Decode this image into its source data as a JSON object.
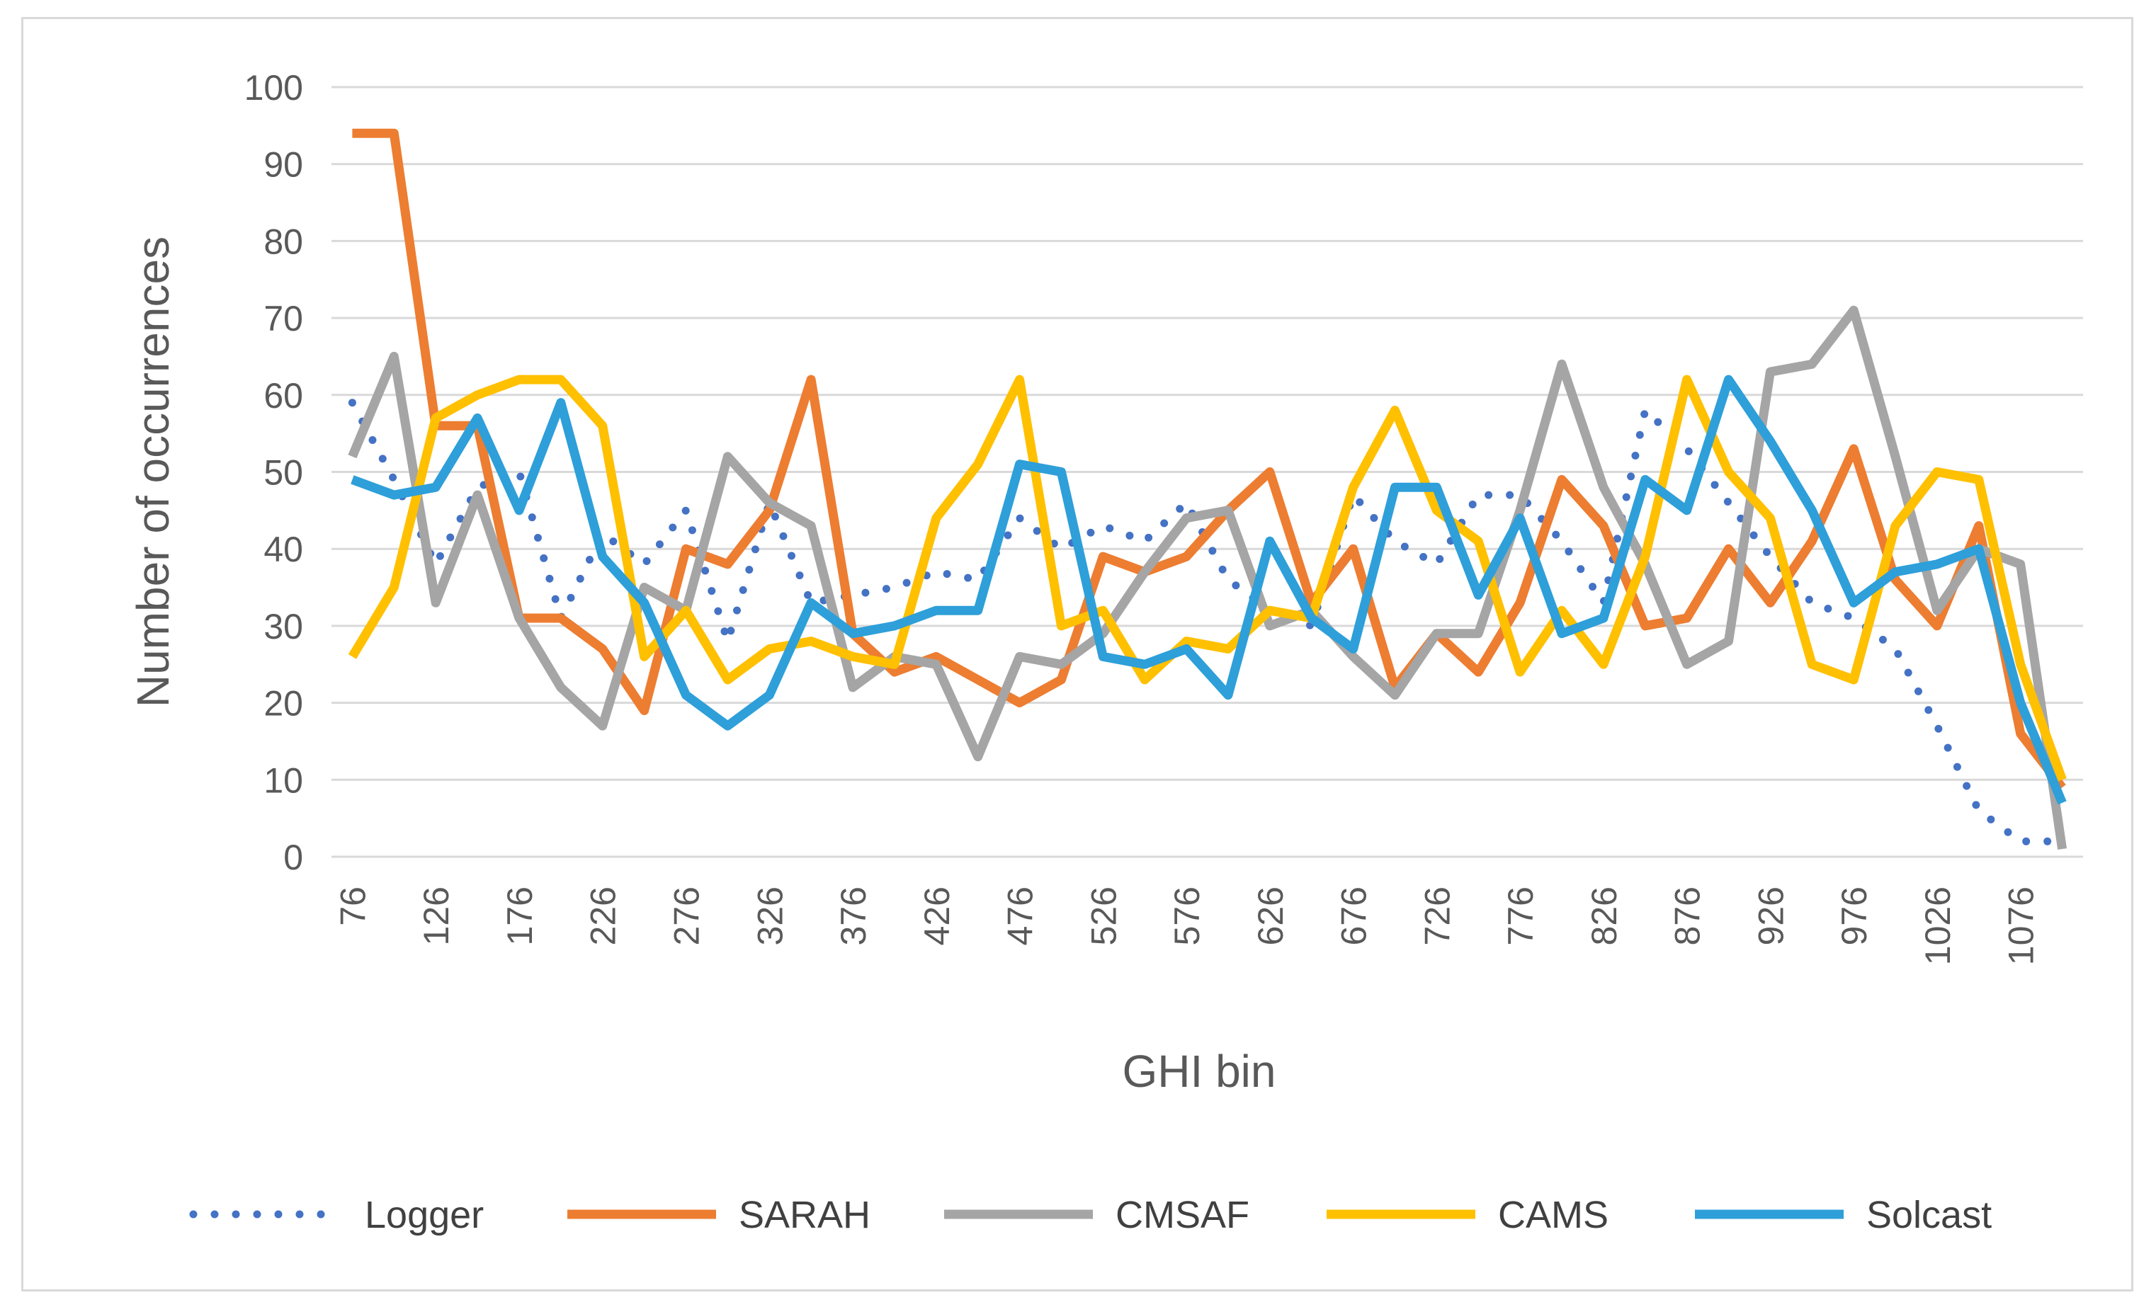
{
  "chart_data": {
    "type": "line",
    "title": "",
    "xlabel": "GHI bin",
    "ylabel": "Number of occurrences",
    "ylim": [
      0,
      100
    ],
    "yticks": [
      0,
      10,
      20,
      30,
      40,
      50,
      60,
      70,
      80,
      90,
      100
    ],
    "grid": true,
    "legend_position": "bottom",
    "x": [
      76,
      101,
      126,
      151,
      176,
      201,
      226,
      251,
      276,
      301,
      326,
      351,
      376,
      401,
      426,
      451,
      476,
      501,
      526,
      551,
      576,
      601,
      626,
      651,
      676,
      701,
      726,
      751,
      776,
      801,
      826,
      851,
      876,
      901,
      926,
      951,
      976,
      1001,
      1026,
      1051,
      1076,
      1101
    ],
    "xtick_labels": [
      "76",
      "126",
      "176",
      "226",
      "276",
      "326",
      "376",
      "426",
      "476",
      "526",
      "576",
      "626",
      "676",
      "726",
      "776",
      "826",
      "876",
      "926",
      "976",
      "1026",
      "1076"
    ],
    "series": [
      {
        "name": "Logger",
        "color": "#4472c4",
        "style": "dotted",
        "values": [
          59,
          49,
          38,
          48,
          50,
          31,
          42,
          38,
          45,
          28,
          46,
          33,
          34,
          35,
          37,
          36,
          44,
          40,
          43,
          41,
          46,
          36,
          32,
          30,
          47,
          41,
          38,
          47,
          47,
          41,
          33,
          58,
          53,
          46,
          39,
          33,
          31,
          27,
          17,
          6,
          2,
          2
        ]
      },
      {
        "name": "SARAH",
        "color": "#ed7d31",
        "style": "solid",
        "values": [
          94,
          94,
          56,
          56,
          31,
          31,
          27,
          19,
          40,
          38,
          45,
          62,
          29,
          24,
          26,
          23,
          20,
          23,
          39,
          37,
          39,
          45,
          50,
          33,
          40,
          22,
          29,
          24,
          33,
          49,
          43,
          30,
          31,
          40,
          33,
          41,
          53,
          36,
          30,
          43,
          16,
          9
        ]
      },
      {
        "name": "CMSAF",
        "color": "#a5a5a5",
        "style": "solid",
        "values": [
          52,
          65,
          33,
          47,
          31,
          22,
          17,
          35,
          32,
          52,
          46,
          43,
          22,
          26,
          25,
          13,
          26,
          25,
          29,
          37,
          44,
          45,
          30,
          32,
          26,
          21,
          29,
          29,
          45,
          64,
          48,
          38,
          25,
          28,
          63,
          64,
          71,
          52,
          32,
          40,
          38,
          1
        ]
      },
      {
        "name": "CAMS",
        "color": "#ffc000",
        "style": "solid",
        "values": [
          26,
          35,
          57,
          60,
          62,
          62,
          56,
          26,
          32,
          23,
          27,
          28,
          26,
          25,
          44,
          51,
          62,
          30,
          32,
          23,
          28,
          27,
          32,
          31,
          48,
          58,
          45,
          41,
          24,
          32,
          25,
          39,
          62,
          50,
          44,
          25,
          23,
          43,
          50,
          49,
          25,
          10
        ]
      },
      {
        "name": "Solcast",
        "color": "#2e9fd9",
        "style": "solid",
        "values": [
          49,
          47,
          48,
          57,
          45,
          59,
          39,
          33,
          21,
          17,
          21,
          33,
          29,
          30,
          32,
          32,
          51,
          50,
          26,
          25,
          27,
          21,
          41,
          31,
          27,
          48,
          48,
          34,
          44,
          29,
          31,
          49,
          45,
          62,
          54,
          45,
          33,
          37,
          38,
          40,
          20,
          7
        ]
      }
    ]
  }
}
